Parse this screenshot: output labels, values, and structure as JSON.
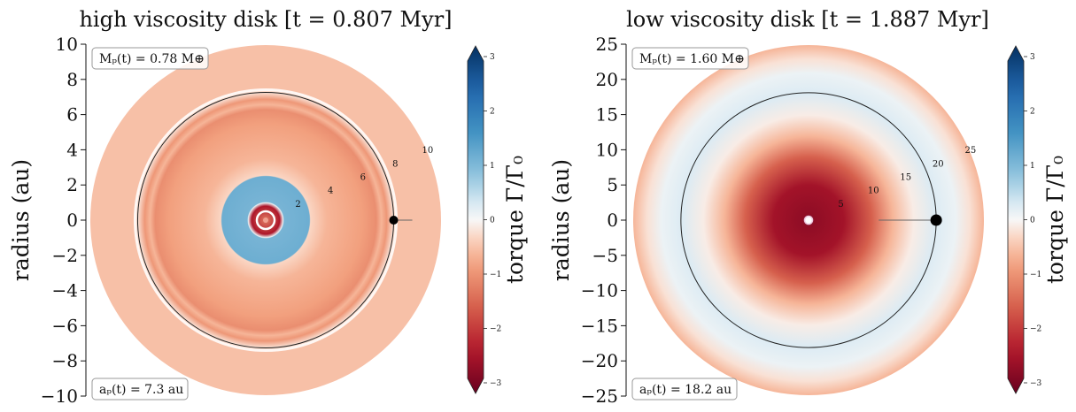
{
  "chart_data": [
    {
      "type": "heatmap",
      "title": "high viscosity disk [t = 0.807 Myr]",
      "ylabel": "radius (au)",
      "ylim": [
        -10,
        10
      ],
      "yticks": [
        "10",
        "8",
        "6",
        "4",
        "2",
        "0",
        "−2",
        "−4",
        "−6",
        "−8",
        "−10"
      ],
      "radial_labels": [
        "2",
        "4",
        "6",
        "8",
        "10"
      ],
      "mass_label": "Mₚ(t) = 0.78 M⊕",
      "semimajor_label": "aₚ(t) = 7.3 au",
      "planet_radius_au": 7.3,
      "torque_profile": [
        {
          "r": 0.0,
          "torque": -1.2
        },
        {
          "r": 0.8,
          "torque": -2.3
        },
        {
          "r": 1.0,
          "torque": 0.1
        },
        {
          "r": 1.05,
          "torque": 1.0
        },
        {
          "r": 2.5,
          "torque": 1.1
        },
        {
          "r": 2.55,
          "torque": -0.3
        },
        {
          "r": 3.5,
          "torque": -0.6
        },
        {
          "r": 5.5,
          "torque": -0.8
        },
        {
          "r": 6.3,
          "torque": -1.0
        },
        {
          "r": 6.6,
          "torque": -0.6
        },
        {
          "r": 6.9,
          "torque": -0.9
        },
        {
          "r": 7.3,
          "torque": -0.2
        },
        {
          "r": 7.5,
          "torque": -0.5
        },
        {
          "r": 10.0,
          "torque": -0.5
        }
      ],
      "colorbar": {
        "label": "torque Γ/Γ₀",
        "range": [
          -3,
          3
        ],
        "ticks": [
          "3",
          "2",
          "1",
          "0",
          "−1",
          "−2",
          "−3"
        ]
      }
    },
    {
      "type": "heatmap",
      "title": "low viscosity disk [t = 1.887 Myr]",
      "ylabel": "radius (au)",
      "ylim": [
        -25,
        25
      ],
      "yticks": [
        "25",
        "20",
        "15",
        "10",
        "5",
        "0",
        "−5",
        "−10",
        "−15",
        "−20",
        "−25"
      ],
      "radial_labels": [
        "5",
        "10",
        "15",
        "20",
        "25"
      ],
      "mass_label": "Mₚ(t) = 1.60 M⊕",
      "semimajor_label": "aₚ(t) = 18.2 au",
      "planet_radius_au": 18.2,
      "torque_profile": [
        {
          "r": 0.0,
          "torque": 1.0
        },
        {
          "r": 0.8,
          "torque": -2.6
        },
        {
          "r": 5.0,
          "torque": -2.4
        },
        {
          "r": 9.0,
          "torque": -1.5
        },
        {
          "r": 12.0,
          "torque": -0.6
        },
        {
          "r": 15.0,
          "torque": -0.1
        },
        {
          "r": 18.0,
          "torque": 0.25
        },
        {
          "r": 21.0,
          "torque": 0.1
        },
        {
          "r": 23.0,
          "torque": -0.2
        },
        {
          "r": 25.0,
          "torque": -0.6
        }
      ],
      "colorbar": {
        "label": "torque Γ/Γ₀",
        "range": [
          -3,
          3
        ],
        "ticks": [
          "3",
          "2",
          "1",
          "0",
          "−1",
          "−2",
          "−3"
        ]
      }
    }
  ]
}
